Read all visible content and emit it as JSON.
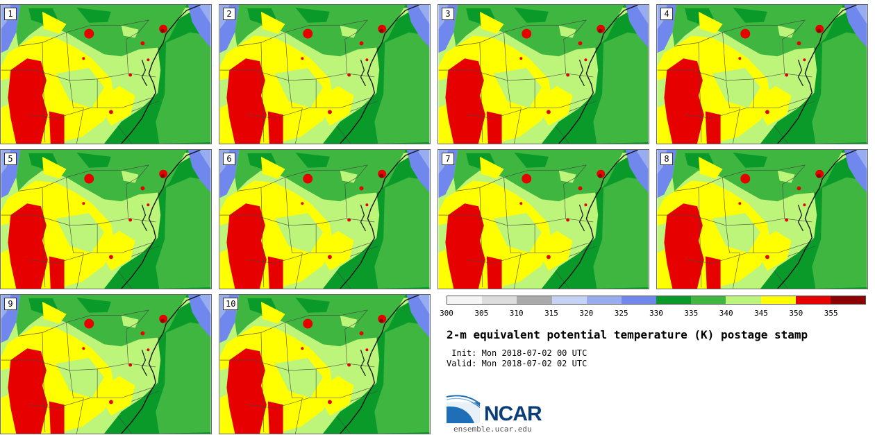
{
  "members": [
    "1",
    "2",
    "3",
    "4",
    "5",
    "6",
    "7",
    "8",
    "9",
    "10"
  ],
  "colorbar": {
    "colors": [
      "#f5f5f5",
      "#dcdcdc",
      "#aaaaaa",
      "#c4d2f5",
      "#98acf0",
      "#7088ee",
      "#0a9a2a",
      "#3fb63f",
      "#bdf57a",
      "#ffff00",
      "#e60000",
      "#8c0000"
    ],
    "tick_labels": [
      "300",
      "305",
      "310",
      "315",
      "320",
      "325",
      "330",
      "335",
      "340",
      "345",
      "350",
      "355"
    ]
  },
  "title": "2-m equivalent potential temperature (K) postage stamp",
  "init": " Init: Mon 2018-07-02 00 UTC",
  "valid": "Valid: Mon 2018-07-02 02 UTC",
  "logo": {
    "text": "NCAR",
    "url": "ensemble.ucar.edu"
  }
}
